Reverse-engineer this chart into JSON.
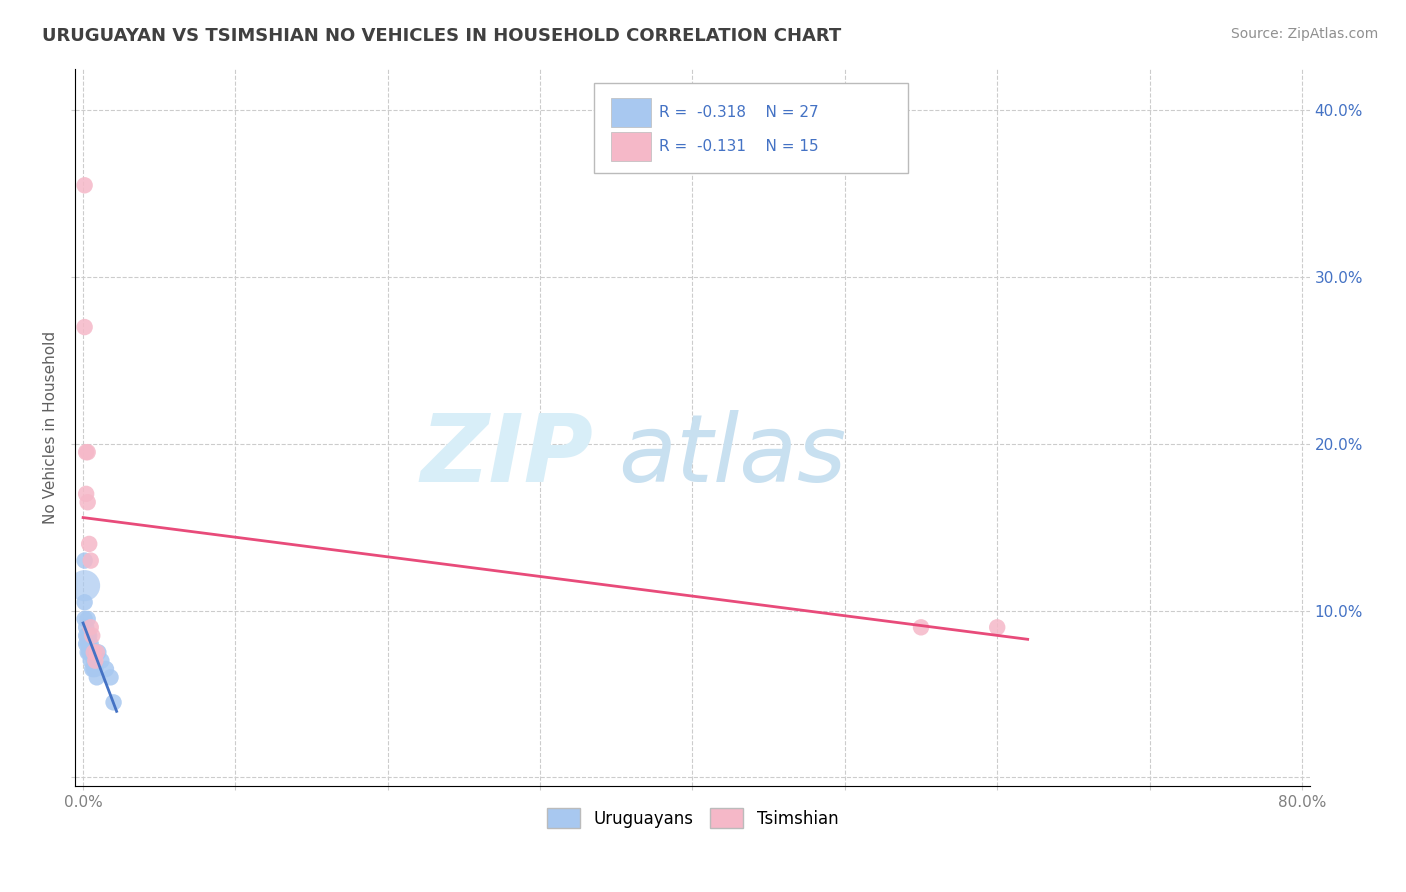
{
  "title": "URUGUAYAN VS TSIMSHIAN NO VEHICLES IN HOUSEHOLD CORRELATION CHART",
  "source_text": "Source: ZipAtlas.com",
  "ylabel": "No Vehicles in Household",
  "xlim": [
    -0.005,
    0.805
  ],
  "ylim": [
    -0.005,
    0.425
  ],
  "xticks": [
    0.0,
    0.1,
    0.2,
    0.3,
    0.4,
    0.5,
    0.6,
    0.7,
    0.8
  ],
  "xtick_labels": [
    "0.0%",
    "",
    "",
    "",
    "",
    "",
    "",
    "",
    "80.0%"
  ],
  "yticks": [
    0.0,
    0.1,
    0.2,
    0.3,
    0.4
  ],
  "ytick_labels_left": [
    "",
    "",
    "",
    "",
    ""
  ],
  "ytick_labels_right": [
    "",
    "10.0%",
    "20.0%",
    "30.0%",
    "40.0%"
  ],
  "uruguayan_x": [
    0.001,
    0.001,
    0.001,
    0.002,
    0.002,
    0.002,
    0.003,
    0.003,
    0.003,
    0.003,
    0.004,
    0.004,
    0.004,
    0.005,
    0.005,
    0.005,
    0.006,
    0.006,
    0.007,
    0.007,
    0.008,
    0.009,
    0.01,
    0.012,
    0.015,
    0.018,
    0.02
  ],
  "uruguayan_y": [
    0.13,
    0.105,
    0.095,
    0.09,
    0.085,
    0.08,
    0.095,
    0.085,
    0.08,
    0.075,
    0.085,
    0.08,
    0.075,
    0.08,
    0.075,
    0.07,
    0.075,
    0.065,
    0.07,
    0.065,
    0.065,
    0.06,
    0.075,
    0.07,
    0.065,
    0.06,
    0.045
  ],
  "tsimshian_x": [
    0.001,
    0.001,
    0.002,
    0.002,
    0.003,
    0.003,
    0.004,
    0.005,
    0.005,
    0.006,
    0.007,
    0.008,
    0.009,
    0.55,
    0.6
  ],
  "tsimshian_y": [
    0.355,
    0.27,
    0.195,
    0.17,
    0.195,
    0.165,
    0.14,
    0.13,
    0.09,
    0.085,
    0.075,
    0.07,
    0.075,
    0.09,
    0.09
  ],
  "blue_color": "#a8c8f0",
  "pink_color": "#f5b8c8",
  "blue_line_color": "#4472c4",
  "pink_line_color": "#e84b7a",
  "background_color": "#ffffff",
  "grid_color": "#cccccc",
  "title_color": "#404040",
  "watermark_zip_color": "#d8eef8",
  "watermark_atlas_color": "#c8e0f0",
  "right_tick_color": "#4472c4",
  "blue_line_start": 0.0,
  "blue_line_end": 0.022,
  "pink_line_start": 0.0,
  "pink_line_end": 0.62
}
